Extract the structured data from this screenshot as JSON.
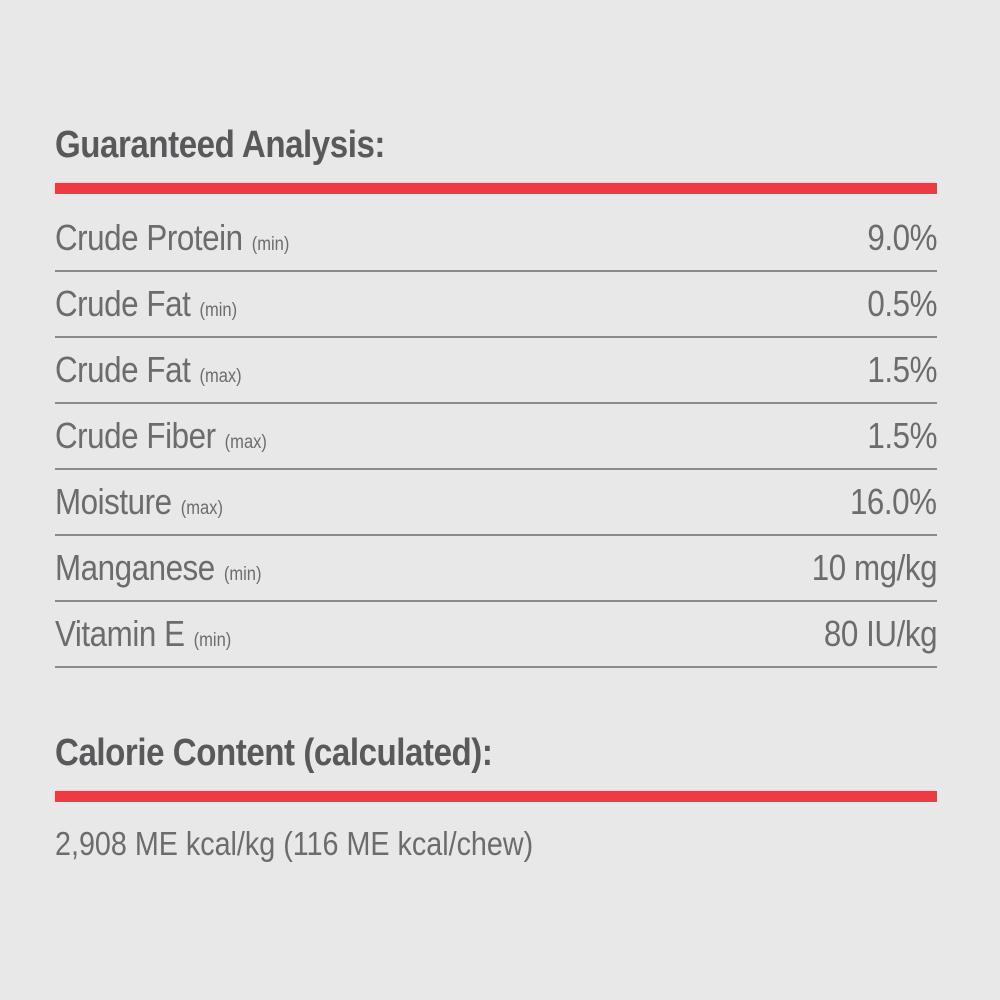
{
  "theme": {
    "background": "#e9e8e8",
    "accent_red": "#ee3b43",
    "heading_color": "#58595b",
    "text_color": "#6b6c6e",
    "divider_color": "#8a8b8d"
  },
  "guaranteed_analysis": {
    "title": "Guaranteed Analysis:",
    "rows": [
      {
        "label": "Crude Protein",
        "qualifier": "(min)",
        "value": "9.0%"
      },
      {
        "label": "Crude Fat",
        "qualifier": "(min)",
        "value": "0.5%"
      },
      {
        "label": "Crude Fat",
        "qualifier": "(max)",
        "value": "1.5%"
      },
      {
        "label": "Crude Fiber",
        "qualifier": "(max)",
        "value": "1.5%"
      },
      {
        "label": "Moisture",
        "qualifier": "(max)",
        "value": "16.0%"
      },
      {
        "label": "Manganese",
        "qualifier": "(min)",
        "value": "10 mg/kg"
      },
      {
        "label": "Vitamin E",
        "qualifier": "(min)",
        "value": "80 IU/kg"
      }
    ]
  },
  "calorie_content": {
    "title": "Calorie Content (calculated):",
    "value": "2,908 ME kcal/kg (116 ME kcal/chew)"
  }
}
